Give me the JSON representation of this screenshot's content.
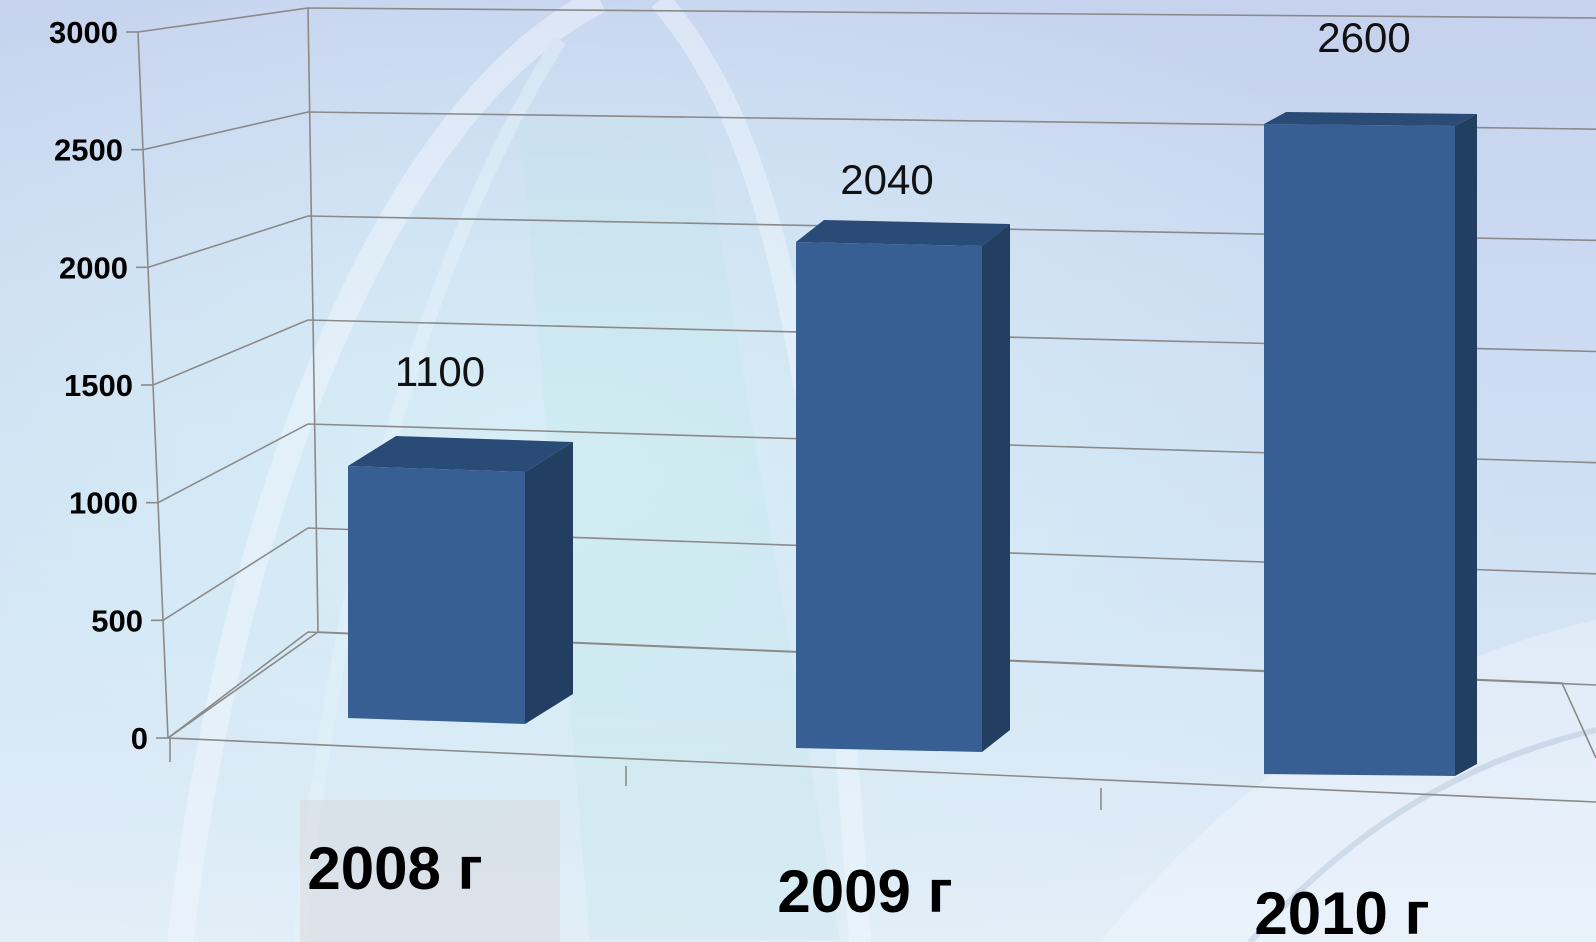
{
  "chart_data": {
    "type": "bar",
    "title": "",
    "xlabel": "",
    "ylabel": "",
    "categories": [
      "2008 г",
      "2009 г",
      "2010 г"
    ],
    "values": [
      1100,
      2040,
      2600
    ],
    "data_labels": [
      "1100",
      "2040",
      "2600"
    ],
    "y_ticks": [
      "0",
      "500",
      "1000",
      "1500",
      "2000",
      "2500",
      "3000"
    ],
    "ylim": [
      0,
      3000
    ],
    "grid": true,
    "legend": "none",
    "style": "3d-column"
  },
  "colors": {
    "bar_front": "#375F93",
    "bar_side": "#223F62",
    "bar_top": "#2A4B75",
    "grid": "#8A8A8A",
    "background_top": "#C6D3EF",
    "background_bottom": "#DDEAF7"
  }
}
